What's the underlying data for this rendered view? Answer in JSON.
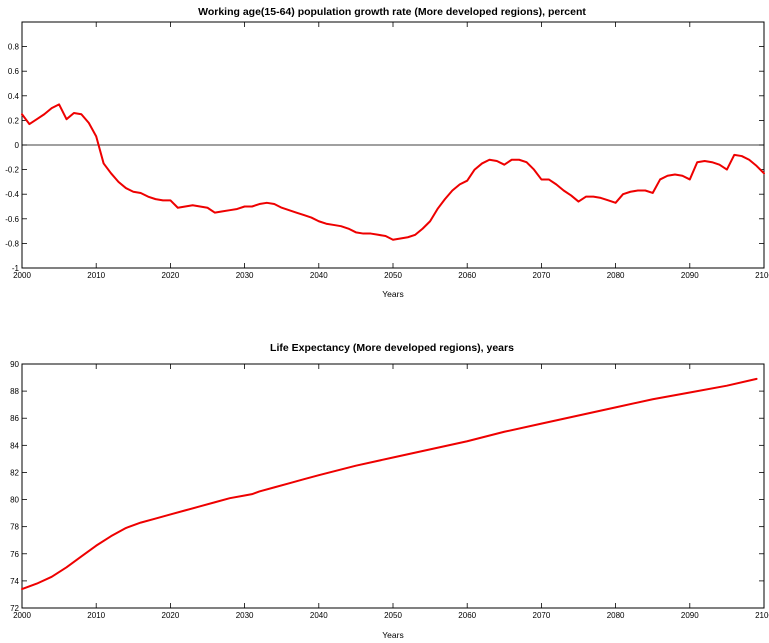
{
  "chart_data": [
    {
      "type": "line",
      "title": "Working age(15-64) population growth rate (More developed regions), percent",
      "xlabel": "Years",
      "ylabel": "",
      "xlim": [
        2000,
        2100
      ],
      "ylim": [
        -1,
        1
      ],
      "x_ticks": [
        2000,
        2010,
        2020,
        2030,
        2040,
        2050,
        2060,
        2070,
        2080,
        2090,
        2100
      ],
      "y_ticks": [
        -1,
        -0.8,
        -0.6,
        -0.4,
        -0.2,
        0,
        0.2,
        0.4,
        0.6,
        0.8
      ],
      "x_tick_labels": [
        "2000",
        "2010",
        "2020",
        "2030",
        "2040",
        "2050",
        "2060",
        "2070",
        "2080",
        "2090",
        "2100"
      ],
      "y_tick_labels": [
        "-1",
        "-0.8",
        "-0.6",
        "-0.4",
        "-0.2",
        "0",
        "0.2",
        "0.4",
        "0.6",
        "0.8"
      ],
      "reference_line_y": 0,
      "color": "#ee0000",
      "series": [
        {
          "x": [
            2000,
            2001,
            2002,
            2003,
            2004,
            2005,
            2006,
            2007,
            2008,
            2009,
            2010,
            2011,
            2012,
            2013,
            2014,
            2015,
            2016,
            2017,
            2018,
            2019,
            2020,
            2021,
            2022,
            2023,
            2024,
            2025,
            2026,
            2027,
            2028,
            2029,
            2030,
            2031,
            2032,
            2033,
            2034,
            2035,
            2036,
            2037,
            2038,
            2039,
            2040,
            2041,
            2042,
            2043,
            2044,
            2045,
            2046,
            2047,
            2048,
            2049,
            2050,
            2051,
            2052,
            2053,
            2054,
            2055,
            2056,
            2057,
            2058,
            2059,
            2060,
            2061,
            2062,
            2063,
            2064,
            2065,
            2066,
            2067,
            2068,
            2069,
            2070,
            2071,
            2072,
            2073,
            2074,
            2075,
            2076,
            2077,
            2078,
            2079,
            2080,
            2081,
            2082,
            2083,
            2084,
            2085,
            2086,
            2087,
            2088,
            2089,
            2090,
            2091,
            2092,
            2093,
            2094,
            2095,
            2096,
            2097,
            2098,
            2099,
            2100
          ],
          "y": [
            0.25,
            0.17,
            0.21,
            0.25,
            0.3,
            0.33,
            0.21,
            0.26,
            0.25,
            0.18,
            0.07,
            -0.15,
            -0.23,
            -0.3,
            -0.35,
            -0.38,
            -0.39,
            -0.42,
            -0.44,
            -0.45,
            -0.45,
            -0.51,
            -0.5,
            -0.49,
            -0.5,
            -0.51,
            -0.55,
            -0.54,
            -0.53,
            -0.52,
            -0.5,
            -0.5,
            -0.48,
            -0.47,
            -0.48,
            -0.51,
            -0.53,
            -0.55,
            -0.57,
            -0.59,
            -0.62,
            -0.64,
            -0.65,
            -0.66,
            -0.68,
            -0.71,
            -0.72,
            -0.72,
            -0.73,
            -0.74,
            -0.77,
            -0.76,
            -0.75,
            -0.73,
            -0.68,
            -0.62,
            -0.52,
            -0.44,
            -0.37,
            -0.32,
            -0.29,
            -0.2,
            -0.15,
            -0.12,
            -0.13,
            -0.16,
            -0.12,
            -0.12,
            -0.14,
            -0.2,
            -0.28,
            -0.28,
            -0.32,
            -0.37,
            -0.41,
            -0.46,
            -0.42,
            -0.42,
            -0.43,
            -0.45,
            -0.47,
            -0.4,
            -0.38,
            -0.37,
            -0.37,
            -0.39,
            -0.28,
            -0.25,
            -0.24,
            -0.25,
            -0.28,
            -0.14,
            -0.13,
            -0.14,
            -0.16,
            -0.2,
            -0.08,
            -0.09,
            -0.12,
            -0.17,
            -0.23
          ]
        }
      ]
    },
    {
      "type": "line",
      "title": "Life Expectancy (More developed regions), years",
      "xlabel": "Years",
      "ylabel": "",
      "xlim": [
        2000,
        2100
      ],
      "ylim": [
        72,
        90
      ],
      "x_ticks": [
        2000,
        2010,
        2020,
        2030,
        2040,
        2050,
        2060,
        2070,
        2080,
        2090,
        2100
      ],
      "y_ticks": [
        72,
        74,
        76,
        78,
        80,
        82,
        84,
        86,
        88,
        90
      ],
      "x_tick_labels": [
        "2000",
        "2010",
        "2020",
        "2030",
        "2040",
        "2050",
        "2060",
        "2070",
        "2080",
        "2090",
        "2100"
      ],
      "y_tick_labels": [
        "72",
        "74",
        "76",
        "78",
        "80",
        "82",
        "84",
        "86",
        "88",
        "90"
      ],
      "color": "#ee0000",
      "series": [
        {
          "x": [
            2000,
            2002,
            2004,
            2006,
            2008,
            2010,
            2012,
            2014,
            2016,
            2018,
            2020,
            2022,
            2024,
            2026,
            2028,
            2030,
            2031,
            2032,
            2034,
            2036,
            2038,
            2040,
            2045,
            2050,
            2055,
            2060,
            2065,
            2070,
            2075,
            2080,
            2085,
            2090,
            2095,
            2099
          ],
          "y": [
            73.4,
            73.8,
            74.3,
            75.0,
            75.8,
            76.6,
            77.3,
            77.9,
            78.3,
            78.6,
            78.9,
            79.2,
            79.5,
            79.8,
            80.1,
            80.3,
            80.4,
            80.6,
            80.9,
            81.2,
            81.5,
            81.8,
            82.5,
            83.1,
            83.7,
            84.3,
            85.0,
            85.6,
            86.2,
            86.8,
            87.4,
            87.9,
            88.4,
            88.9
          ]
        }
      ]
    }
  ]
}
